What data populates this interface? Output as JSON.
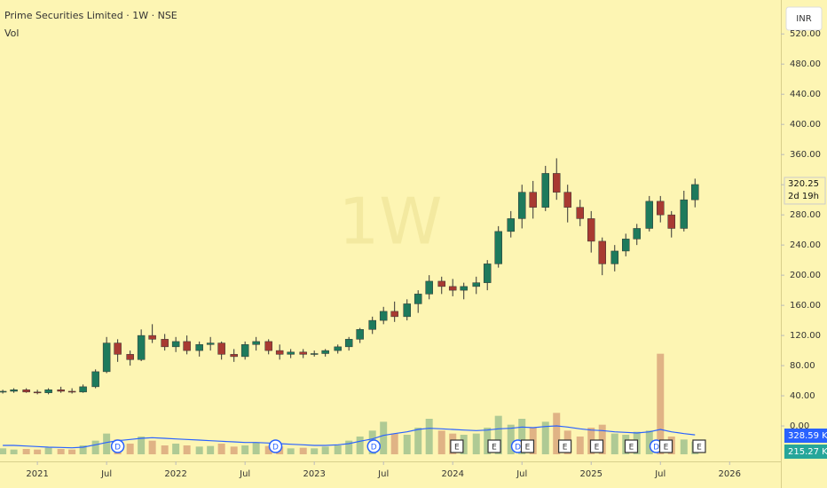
{
  "chart_data": {
    "type": "candlestick",
    "title": "Prime Securities Limited · 1W · NSE",
    "volume_title": "Vol",
    "currency": "INR",
    "watermark": "1W",
    "last_price": {
      "value": 320.25,
      "label": "320.25"
    },
    "countdown": "2d 19h",
    "up_color": "#1e7a5c",
    "down_color": "#a83a32",
    "ma_color": "#2962ff",
    "ylim": [
      -47,
      565
    ],
    "yticks": [
      {
        "value": 0,
        "label": "0.00"
      },
      {
        "value": 40,
        "label": "40.00"
      },
      {
        "value": 80,
        "label": "80.00"
      },
      {
        "value": 120,
        "label": "120.00"
      },
      {
        "value": 160,
        "label": "160.00"
      },
      {
        "value": 200,
        "label": "200.00"
      },
      {
        "value": 240,
        "label": "240.00"
      },
      {
        "value": 280,
        "label": "280.00"
      },
      {
        "value": 320,
        "label": "320.00"
      },
      {
        "value": 360,
        "label": "360.00"
      },
      {
        "value": 400,
        "label": "400.00"
      },
      {
        "value": 440,
        "label": "440.00"
      },
      {
        "value": 480,
        "label": "480.00"
      },
      {
        "value": 520,
        "label": "520.00"
      }
    ],
    "xlim": [
      2020.73,
      2026.37
    ],
    "xticks": [
      {
        "value": 2021,
        "label": "2021"
      },
      {
        "value": 2021.5,
        "label": "Jul"
      },
      {
        "value": 2022,
        "label": "2022"
      },
      {
        "value": 2022.5,
        "label": "Jul"
      },
      {
        "value": 2023,
        "label": "2023"
      },
      {
        "value": 2023.5,
        "label": "Jul"
      },
      {
        "value": 2024,
        "label": "2024"
      },
      {
        "value": 2024.5,
        "label": "Jul"
      },
      {
        "value": 2025,
        "label": "2025"
      },
      {
        "value": 2025.5,
        "label": "Jul"
      },
      {
        "value": 2026,
        "label": "2026"
      }
    ],
    "x": [
      2020.75,
      2020.83,
      2020.92,
      2021,
      2021.08,
      2021.17,
      2021.25,
      2021.33,
      2021.42,
      2021.5,
      2021.58,
      2021.67,
      2021.75,
      2021.83,
      2021.92,
      2022,
      2022.08,
      2022.17,
      2022.25,
      2022.33,
      2022.42,
      2022.5,
      2022.58,
      2022.67,
      2022.75,
      2022.83,
      2022.92,
      2023,
      2023.08,
      2023.17,
      2023.25,
      2023.33,
      2023.42,
      2023.5,
      2023.58,
      2023.67,
      2023.75,
      2023.83,
      2023.92,
      2024,
      2024.08,
      2024.17,
      2024.25,
      2024.33,
      2024.42,
      2024.5,
      2024.58,
      2024.67,
      2024.75,
      2024.83,
      2024.92,
      2025,
      2025.08,
      2025.17,
      2025.25,
      2025.33,
      2025.42,
      2025.5,
      2025.58,
      2025.67,
      2025.75
    ],
    "ohlc": [
      [
        45,
        48,
        43,
        46
      ],
      [
        46,
        50,
        44,
        48
      ],
      [
        48,
        50,
        44,
        45
      ],
      [
        45,
        48,
        42,
        44
      ],
      [
        44,
        50,
        42,
        48
      ],
      [
        48,
        52,
        44,
        46
      ],
      [
        46,
        50,
        43,
        45
      ],
      [
        45,
        55,
        44,
        52
      ],
      [
        52,
        75,
        50,
        72
      ],
      [
        72,
        118,
        70,
        110
      ],
      [
        110,
        115,
        85,
        95
      ],
      [
        95,
        100,
        80,
        88
      ],
      [
        88,
        128,
        86,
        120
      ],
      [
        120,
        135,
        110,
        115
      ],
      [
        115,
        122,
        100,
        105
      ],
      [
        105,
        118,
        98,
        112
      ],
      [
        112,
        120,
        95,
        100
      ],
      [
        100,
        112,
        92,
        108
      ],
      [
        108,
        118,
        100,
        110
      ],
      [
        110,
        112,
        88,
        95
      ],
      [
        95,
        102,
        85,
        92
      ],
      [
        92,
        112,
        88,
        108
      ],
      [
        108,
        118,
        100,
        112
      ],
      [
        112,
        115,
        95,
        100
      ],
      [
        100,
        108,
        88,
        95
      ],
      [
        95,
        102,
        90,
        98
      ],
      [
        98,
        102,
        90,
        95
      ],
      [
        95,
        100,
        92,
        96
      ],
      [
        96,
        102,
        92,
        100
      ],
      [
        100,
        108,
        96,
        105
      ],
      [
        105,
        118,
        100,
        115
      ],
      [
        115,
        130,
        110,
        128
      ],
      [
        128,
        145,
        122,
        140
      ],
      [
        140,
        158,
        135,
        152
      ],
      [
        152,
        165,
        138,
        145
      ],
      [
        145,
        168,
        140,
        162
      ],
      [
        162,
        180,
        150,
        175
      ],
      [
        175,
        200,
        168,
        192
      ],
      [
        192,
        198,
        175,
        185
      ],
      [
        185,
        195,
        172,
        180
      ],
      [
        180,
        190,
        168,
        185
      ],
      [
        185,
        198,
        175,
        190
      ],
      [
        190,
        220,
        180,
        215
      ],
      [
        215,
        265,
        210,
        258
      ],
      [
        258,
        285,
        250,
        275
      ],
      [
        275,
        320,
        262,
        310
      ],
      [
        310,
        325,
        275,
        290
      ],
      [
        290,
        345,
        285,
        335
      ],
      [
        335,
        355,
        300,
        310
      ],
      [
        310,
        320,
        270,
        290
      ],
      [
        290,
        300,
        265,
        275
      ],
      [
        275,
        285,
        230,
        245
      ],
      [
        245,
        250,
        200,
        215
      ],
      [
        215,
        240,
        205,
        232
      ],
      [
        232,
        255,
        225,
        248
      ],
      [
        248,
        268,
        240,
        262
      ],
      [
        262,
        305,
        258,
        298
      ],
      [
        298,
        305,
        270,
        280
      ],
      [
        280,
        285,
        250,
        262
      ],
      [
        262,
        312,
        258,
        300
      ],
      [
        300,
        328,
        290,
        320.25
      ]
    ],
    "vol_ylim": [
      0,
      1830
    ],
    "volume": [
      100,
      80,
      90,
      80,
      110,
      90,
      80,
      150,
      230,
      350,
      250,
      180,
      300,
      230,
      150,
      180,
      150,
      130,
      140,
      180,
      130,
      150,
      200,
      140,
      130,
      100,
      110,
      100,
      130,
      150,
      230,
      300,
      400,
      550,
      350,
      330,
      450,
      600,
      400,
      350,
      330,
      350,
      450,
      650,
      500,
      600,
      450,
      550,
      700,
      400,
      300,
      450,
      500,
      350,
      330,
      380,
      400,
      1700,
      300,
      250,
      215.27
    ],
    "volume_ma": [
      150,
      150,
      140,
      130,
      120,
      115,
      110,
      120,
      160,
      200,
      230,
      250,
      270,
      280,
      270,
      260,
      250,
      240,
      230,
      220,
      210,
      200,
      200,
      190,
      180,
      170,
      160,
      150,
      150,
      160,
      180,
      220,
      260,
      320,
      350,
      380,
      420,
      440,
      430,
      420,
      410,
      400,
      410,
      430,
      440,
      460,
      450,
      470,
      480,
      460,
      430,
      410,
      400,
      380,
      370,
      360,
      380,
      420,
      380,
      350,
      328.59
    ],
    "last_values": [
      {
        "value": 328.59,
        "label": "328.59 K",
        "color": "#2962ff"
      },
      {
        "value": 215.27,
        "label": "215.27 K",
        "color": "#26a69a"
      }
    ],
    "events": [
      {
        "x": 2021.58,
        "label": "D"
      },
      {
        "x": 2022.72,
        "label": "D"
      },
      {
        "x": 2023.43,
        "label": "D"
      },
      {
        "x": 2024.03,
        "label": "E"
      },
      {
        "x": 2024.3,
        "label": "E"
      },
      {
        "x": 2024.47,
        "label": "D"
      },
      {
        "x": 2024.54,
        "label": "E"
      },
      {
        "x": 2024.81,
        "label": "E"
      },
      {
        "x": 2025.04,
        "label": "E"
      },
      {
        "x": 2025.29,
        "label": "E"
      },
      {
        "x": 2025.47,
        "label": "D"
      },
      {
        "x": 2025.54,
        "label": "E"
      },
      {
        "x": 2025.78,
        "label": "E"
      }
    ]
  }
}
